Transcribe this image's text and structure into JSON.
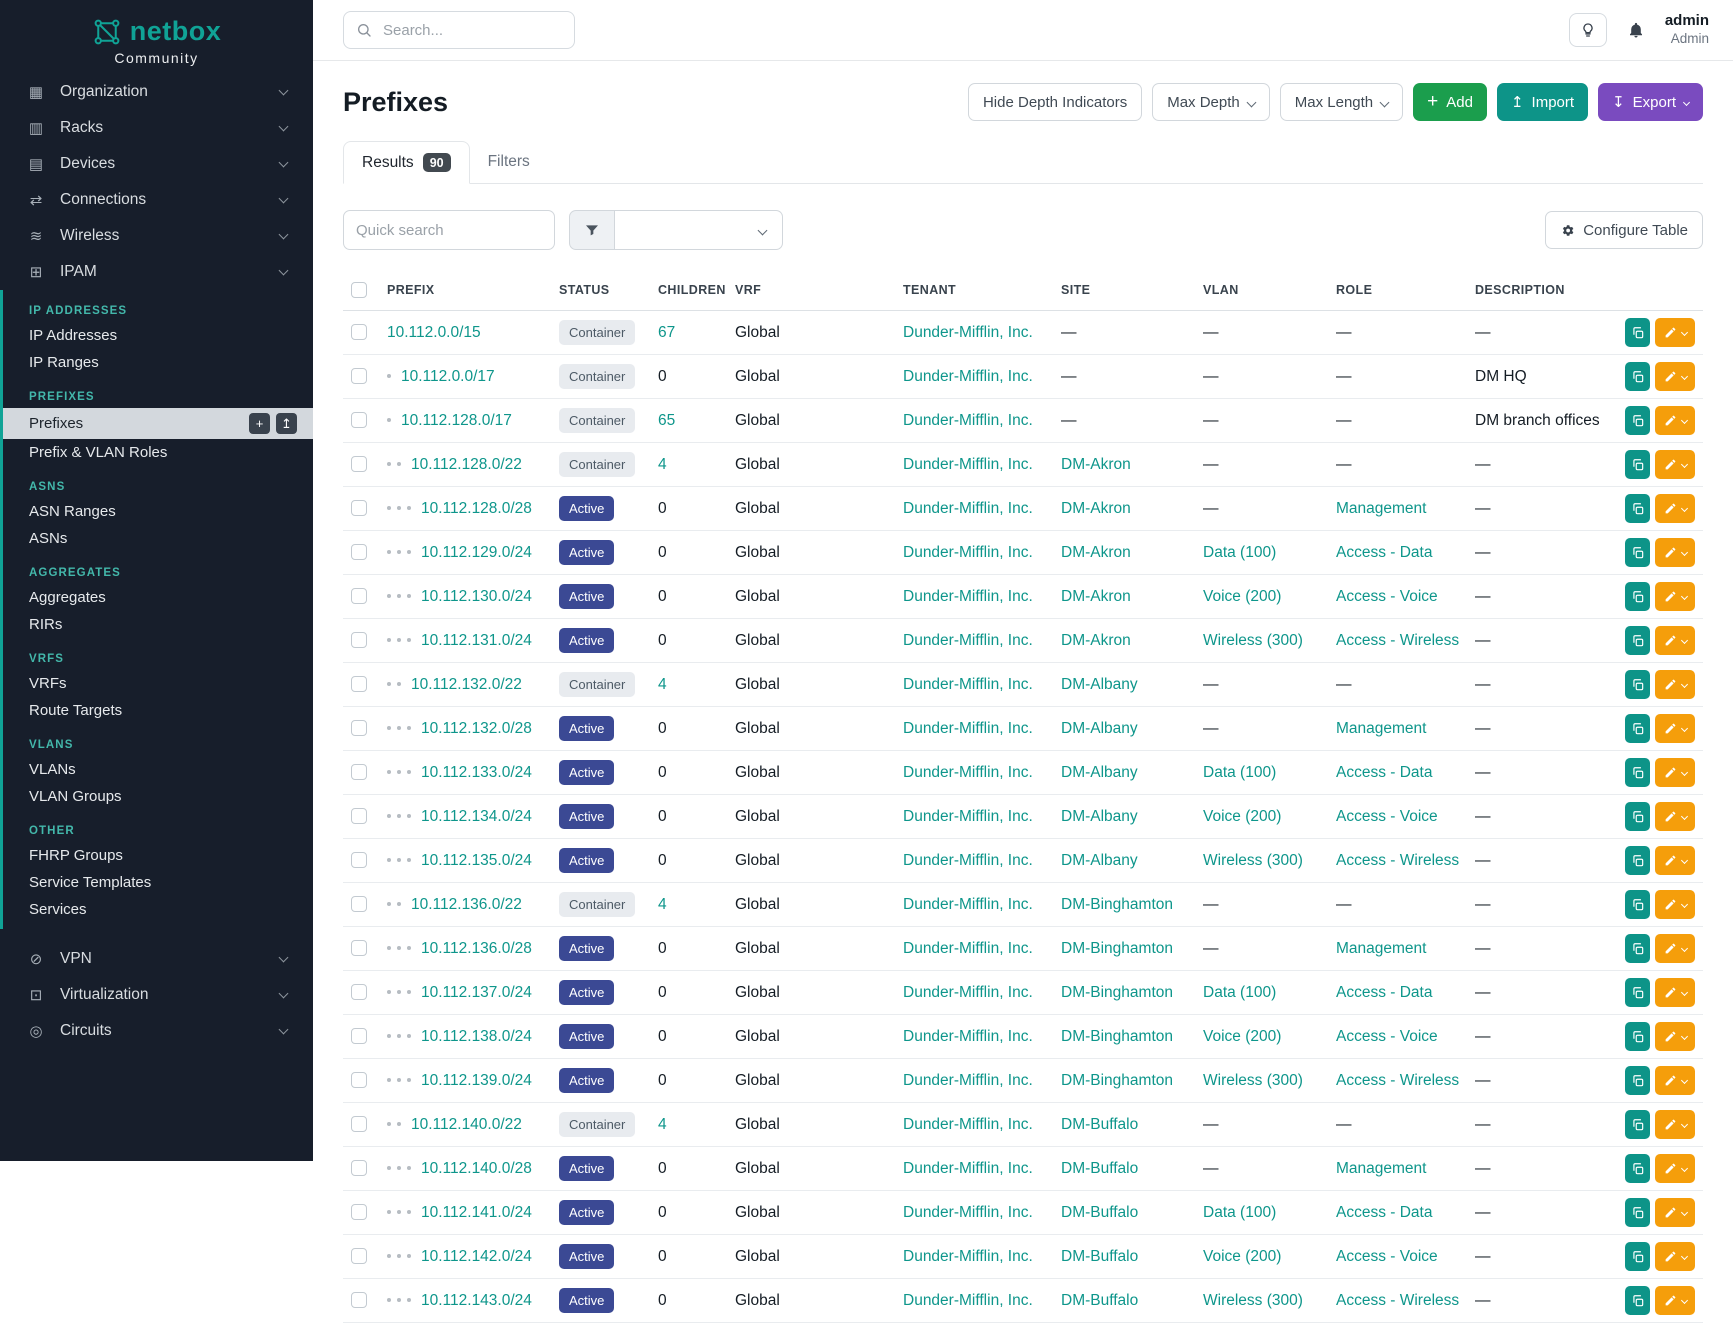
{
  "brand": {
    "name": "netbox",
    "subtitle": "Community"
  },
  "topbar": {
    "search_placeholder": "Search...",
    "user_name": "admin",
    "user_role": "Admin"
  },
  "sidebar": {
    "top_items": [
      {
        "label": "Organization",
        "icon": "building-icon",
        "glyph": "▦"
      },
      {
        "label": "Racks",
        "icon": "rack-icon",
        "glyph": "▥"
      },
      {
        "label": "Devices",
        "icon": "device-icon",
        "glyph": "▤"
      },
      {
        "label": "Connections",
        "icon": "cable-icon",
        "glyph": "⇄"
      },
      {
        "label": "Wireless",
        "icon": "wifi-icon",
        "glyph": "≋"
      },
      {
        "label": "IPAM",
        "icon": "ipam-icon",
        "glyph": "⊞"
      }
    ],
    "sections": [
      {
        "header": "IP ADDRESSES",
        "items": [
          "IP Addresses",
          "IP Ranges"
        ]
      },
      {
        "header": "PREFIXES",
        "items": [
          "Prefixes",
          "Prefix & VLAN Roles"
        ]
      },
      {
        "header": "ASNS",
        "items": [
          "ASN Ranges",
          "ASNs"
        ]
      },
      {
        "header": "AGGREGATES",
        "items": [
          "Aggregates",
          "RIRs"
        ]
      },
      {
        "header": "VRFS",
        "items": [
          "VRFs",
          "Route Targets"
        ]
      },
      {
        "header": "VLANS",
        "items": [
          "VLANs",
          "VLAN Groups"
        ]
      },
      {
        "header": "OTHER",
        "items": [
          "FHRP Groups",
          "Service Templates",
          "Services"
        ]
      }
    ],
    "quick_actions": {
      "add": "+",
      "import": "↥"
    },
    "bottom_items": [
      {
        "label": "VPN",
        "icon": "vpn-icon",
        "glyph": "⊘"
      },
      {
        "label": "Virtualization",
        "icon": "virtualization-icon",
        "glyph": "⊡"
      },
      {
        "label": "Circuits",
        "icon": "circuits-icon",
        "glyph": "◎"
      }
    ]
  },
  "page": {
    "title": "Prefixes",
    "buttons": {
      "hide_depth": "Hide Depth Indicators",
      "max_depth": "Max Depth",
      "max_length": "Max Length",
      "add": "Add",
      "import": "Import",
      "export": "Export"
    },
    "tabs": [
      {
        "label": "Results",
        "badge": "90"
      },
      {
        "label": "Filters"
      }
    ],
    "quick_search_placeholder": "Quick search",
    "configure_table": "Configure Table"
  },
  "table": {
    "columns": [
      "PREFIX",
      "STATUS",
      "CHILDREN",
      "VRF",
      "TENANT",
      "SITE",
      "VLAN",
      "ROLE",
      "DESCRIPTION"
    ],
    "rows": [
      {
        "depth": 0,
        "prefix": "10.112.0.0/15",
        "status": "Container",
        "children": "67",
        "vrf": "Global",
        "tenant": "Dunder-Mifflin, Inc.",
        "site": "—",
        "vlan": "—",
        "role": "—",
        "description": "—"
      },
      {
        "depth": 1,
        "prefix": "10.112.0.0/17",
        "status": "Container",
        "children": "0",
        "vrf": "Global",
        "tenant": "Dunder-Mifflin, Inc.",
        "site": "—",
        "vlan": "—",
        "role": "—",
        "description": "DM HQ"
      },
      {
        "depth": 1,
        "prefix": "10.112.128.0/17",
        "status": "Container",
        "children": "65",
        "vrf": "Global",
        "tenant": "Dunder-Mifflin, Inc.",
        "site": "—",
        "vlan": "—",
        "role": "—",
        "description": "DM branch offices"
      },
      {
        "depth": 2,
        "prefix": "10.112.128.0/22",
        "status": "Container",
        "children": "4",
        "vrf": "Global",
        "tenant": "Dunder-Mifflin, Inc.",
        "site": "DM-Akron",
        "vlan": "—",
        "role": "—",
        "description": "—"
      },
      {
        "depth": 3,
        "prefix": "10.112.128.0/28",
        "status": "Active",
        "children": "0",
        "vrf": "Global",
        "tenant": "Dunder-Mifflin, Inc.",
        "site": "DM-Akron",
        "vlan": "—",
        "role": "Management",
        "description": "—"
      },
      {
        "depth": 3,
        "prefix": "10.112.129.0/24",
        "status": "Active",
        "children": "0",
        "vrf": "Global",
        "tenant": "Dunder-Mifflin, Inc.",
        "site": "DM-Akron",
        "vlan": "Data (100)",
        "role": "Access - Data",
        "description": "—"
      },
      {
        "depth": 3,
        "prefix": "10.112.130.0/24",
        "status": "Active",
        "children": "0",
        "vrf": "Global",
        "tenant": "Dunder-Mifflin, Inc.",
        "site": "DM-Akron",
        "vlan": "Voice (200)",
        "role": "Access - Voice",
        "description": "—"
      },
      {
        "depth": 3,
        "prefix": "10.112.131.0/24",
        "status": "Active",
        "children": "0",
        "vrf": "Global",
        "tenant": "Dunder-Mifflin, Inc.",
        "site": "DM-Akron",
        "vlan": "Wireless (300)",
        "role": "Access - Wireless",
        "description": "—"
      },
      {
        "depth": 2,
        "prefix": "10.112.132.0/22",
        "status": "Container",
        "children": "4",
        "vrf": "Global",
        "tenant": "Dunder-Mifflin, Inc.",
        "site": "DM-Albany",
        "vlan": "—",
        "role": "—",
        "description": "—"
      },
      {
        "depth": 3,
        "prefix": "10.112.132.0/28",
        "status": "Active",
        "children": "0",
        "vrf": "Global",
        "tenant": "Dunder-Mifflin, Inc.",
        "site": "DM-Albany",
        "vlan": "—",
        "role": "Management",
        "description": "—"
      },
      {
        "depth": 3,
        "prefix": "10.112.133.0/24",
        "status": "Active",
        "children": "0",
        "vrf": "Global",
        "tenant": "Dunder-Mifflin, Inc.",
        "site": "DM-Albany",
        "vlan": "Data (100)",
        "role": "Access - Data",
        "description": "—"
      },
      {
        "depth": 3,
        "prefix": "10.112.134.0/24",
        "status": "Active",
        "children": "0",
        "vrf": "Global",
        "tenant": "Dunder-Mifflin, Inc.",
        "site": "DM-Albany",
        "vlan": "Voice (200)",
        "role": "Access - Voice",
        "description": "—"
      },
      {
        "depth": 3,
        "prefix": "10.112.135.0/24",
        "status": "Active",
        "children": "0",
        "vrf": "Global",
        "tenant": "Dunder-Mifflin, Inc.",
        "site": "DM-Albany",
        "vlan": "Wireless (300)",
        "role": "Access - Wireless",
        "description": "—"
      },
      {
        "depth": 2,
        "prefix": "10.112.136.0/22",
        "status": "Container",
        "children": "4",
        "vrf": "Global",
        "tenant": "Dunder-Mifflin, Inc.",
        "site": "DM-Binghamton",
        "vlan": "—",
        "role": "—",
        "description": "—"
      },
      {
        "depth": 3,
        "prefix": "10.112.136.0/28",
        "status": "Active",
        "children": "0",
        "vrf": "Global",
        "tenant": "Dunder-Mifflin, Inc.",
        "site": "DM-Binghamton",
        "vlan": "—",
        "role": "Management",
        "description": "—"
      },
      {
        "depth": 3,
        "prefix": "10.112.137.0/24",
        "status": "Active",
        "children": "0",
        "vrf": "Global",
        "tenant": "Dunder-Mifflin, Inc.",
        "site": "DM-Binghamton",
        "vlan": "Data (100)",
        "role": "Access - Data",
        "description": "—"
      },
      {
        "depth": 3,
        "prefix": "10.112.138.0/24",
        "status": "Active",
        "children": "0",
        "vrf": "Global",
        "tenant": "Dunder-Mifflin, Inc.",
        "site": "DM-Binghamton",
        "vlan": "Voice (200)",
        "role": "Access - Voice",
        "description": "—"
      },
      {
        "depth": 3,
        "prefix": "10.112.139.0/24",
        "status": "Active",
        "children": "0",
        "vrf": "Global",
        "tenant": "Dunder-Mifflin, Inc.",
        "site": "DM-Binghamton",
        "vlan": "Wireless (300)",
        "role": "Access - Wireless",
        "description": "—"
      },
      {
        "depth": 2,
        "prefix": "10.112.140.0/22",
        "status": "Container",
        "children": "4",
        "vrf": "Global",
        "tenant": "Dunder-Mifflin, Inc.",
        "site": "DM-Buffalo",
        "vlan": "—",
        "role": "—",
        "description": "—"
      },
      {
        "depth": 3,
        "prefix": "10.112.140.0/28",
        "status": "Active",
        "children": "0",
        "vrf": "Global",
        "tenant": "Dunder-Mifflin, Inc.",
        "site": "DM-Buffalo",
        "vlan": "—",
        "role": "Management",
        "description": "—"
      },
      {
        "depth": 3,
        "prefix": "10.112.141.0/24",
        "status": "Active",
        "children": "0",
        "vrf": "Global",
        "tenant": "Dunder-Mifflin, Inc.",
        "site": "DM-Buffalo",
        "vlan": "Data (100)",
        "role": "Access - Data",
        "description": "—"
      },
      {
        "depth": 3,
        "prefix": "10.112.142.0/24",
        "status": "Active",
        "children": "0",
        "vrf": "Global",
        "tenant": "Dunder-Mifflin, Inc.",
        "site": "DM-Buffalo",
        "vlan": "Voice (200)",
        "role": "Access - Voice",
        "description": "—"
      },
      {
        "depth": 3,
        "prefix": "10.112.143.0/24",
        "status": "Active",
        "children": "0",
        "vrf": "Global",
        "tenant": "Dunder-Mifflin, Inc.",
        "site": "DM-Buffalo",
        "vlan": "Wireless (300)",
        "role": "Access - Wireless",
        "description": "—"
      }
    ]
  },
  "colors": {
    "sidebar-bg": "#171e2b",
    "brand-teal": "#10a396",
    "section-teal": "#43b8ab",
    "link-teal": "#0e968b",
    "add-green": "#1b9e4d",
    "import-teal": "#0d9488",
    "export-purple": "#7a4bbf",
    "edit-orange": "#f59e0b",
    "status-active": "#3b4994",
    "active-item-bg": "#d3d8dd"
  }
}
